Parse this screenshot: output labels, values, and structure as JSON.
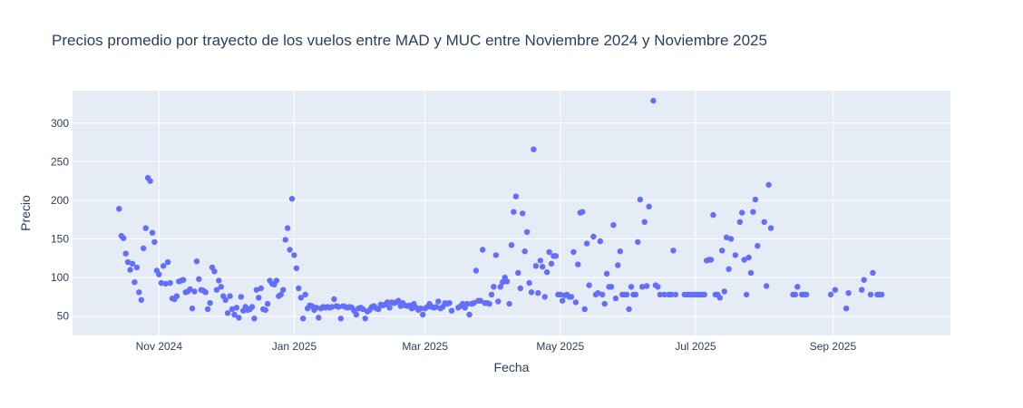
{
  "chart_data": {
    "type": "scatter",
    "title": "Precios promedio por trayecto de los vuelos entre MAD y MUC entre Noviembre 2024 y Noviembre 2025",
    "xlabel": "Fecha",
    "ylabel": "Precio",
    "xlim": [
      "2024-09-23",
      "2025-10-24"
    ],
    "ylim": [
      25,
      342
    ],
    "xticks": [
      {
        "date": "2024-11-01",
        "label": "Nov 2024"
      },
      {
        "date": "2025-01-01",
        "label": "Jan 2025"
      },
      {
        "date": "2025-03-01",
        "label": "Mar 2025"
      },
      {
        "date": "2025-05-01",
        "label": "May 2025"
      },
      {
        "date": "2025-07-01",
        "label": "Jul 2025"
      },
      {
        "date": "2025-09-01",
        "label": "Sep 2025"
      }
    ],
    "yticks": [
      50,
      100,
      150,
      200,
      250,
      300
    ],
    "grid": true,
    "plot_bgcolor": "#E5ECF6",
    "marker_color": "#636EFA",
    "points": [
      [
        "2024-10-14",
        189
      ],
      [
        "2024-10-15",
        154
      ],
      [
        "2024-10-16",
        151
      ],
      [
        "2024-10-17",
        131
      ],
      [
        "2024-10-18",
        120
      ],
      [
        "2024-10-19",
        110
      ],
      [
        "2024-10-20",
        118
      ],
      [
        "2024-10-21",
        94
      ],
      [
        "2024-10-22",
        113
      ],
      [
        "2024-10-23",
        81
      ],
      [
        "2024-10-24",
        71
      ],
      [
        "2024-10-25",
        138
      ],
      [
        "2024-10-26",
        164
      ],
      [
        "2024-10-27",
        229
      ],
      [
        "2024-10-28",
        225
      ],
      [
        "2024-10-29",
        158
      ],
      [
        "2024-10-30",
        146
      ],
      [
        "2024-10-31",
        109
      ],
      [
        "2024-11-01",
        104
      ],
      [
        "2024-11-02",
        93
      ],
      [
        "2024-11-03",
        115
      ],
      [
        "2024-11-04",
        92
      ],
      [
        "2024-11-05",
        120
      ],
      [
        "2024-11-06",
        93
      ],
      [
        "2024-11-07",
        73
      ],
      [
        "2024-11-08",
        72
      ],
      [
        "2024-11-09",
        76
      ],
      [
        "2024-11-10",
        95
      ],
      [
        "2024-11-11",
        96
      ],
      [
        "2024-11-12",
        97
      ],
      [
        "2024-11-13",
        81
      ],
      [
        "2024-11-14",
        82
      ],
      [
        "2024-11-15",
        85
      ],
      [
        "2024-11-16",
        60
      ],
      [
        "2024-11-17",
        82
      ],
      [
        "2024-11-18",
        121
      ],
      [
        "2024-11-19",
        98
      ],
      [
        "2024-11-20",
        84
      ],
      [
        "2024-11-21",
        83
      ],
      [
        "2024-11-22",
        81
      ],
      [
        "2024-11-23",
        59
      ],
      [
        "2024-11-24",
        67
      ],
      [
        "2024-11-25",
        113
      ],
      [
        "2024-11-26",
        108
      ],
      [
        "2024-11-27",
        84
      ],
      [
        "2024-11-28",
        96
      ],
      [
        "2024-11-29",
        88
      ],
      [
        "2024-11-30",
        76
      ],
      [
        "2024-12-01",
        71
      ],
      [
        "2024-12-02",
        54
      ],
      [
        "2024-12-03",
        76
      ],
      [
        "2024-12-04",
        59
      ],
      [
        "2024-12-05",
        52
      ],
      [
        "2024-12-06",
        61
      ],
      [
        "2024-12-07",
        48
      ],
      [
        "2024-12-08",
        75
      ],
      [
        "2024-12-09",
        57
      ],
      [
        "2024-12-10",
        62
      ],
      [
        "2024-12-11",
        58
      ],
      [
        "2024-12-12",
        59
      ],
      [
        "2024-12-13",
        62
      ],
      [
        "2024-12-14",
        47
      ],
      [
        "2024-12-15",
        84
      ],
      [
        "2024-12-16",
        74
      ],
      [
        "2024-12-17",
        86
      ],
      [
        "2024-12-18",
        59
      ],
      [
        "2024-12-19",
        58
      ],
      [
        "2024-12-20",
        66
      ],
      [
        "2024-12-21",
        96
      ],
      [
        "2024-12-22",
        92
      ],
      [
        "2024-12-23",
        91
      ],
      [
        "2024-12-24",
        96
      ],
      [
        "2024-12-25",
        76
      ],
      [
        "2024-12-26",
        78
      ],
      [
        "2024-12-27",
        84
      ],
      [
        "2024-12-28",
        149
      ],
      [
        "2024-12-29",
        164
      ],
      [
        "2024-12-30",
        136
      ],
      [
        "2024-12-31",
        202
      ],
      [
        "2025-01-01",
        129
      ],
      [
        "2025-01-02",
        112
      ],
      [
        "2025-01-03",
        86
      ],
      [
        "2025-01-04",
        74
      ],
      [
        "2025-01-05",
        47
      ],
      [
        "2025-01-06",
        78
      ],
      [
        "2025-01-07",
        60
      ],
      [
        "2025-01-08",
        64
      ],
      [
        "2025-01-09",
        63
      ],
      [
        "2025-01-10",
        58
      ],
      [
        "2025-01-11",
        61
      ],
      [
        "2025-01-12",
        48
      ],
      [
        "2025-01-13",
        60
      ],
      [
        "2025-01-14",
        62
      ],
      [
        "2025-01-15",
        61
      ],
      [
        "2025-01-16",
        62
      ],
      [
        "2025-01-17",
        61
      ],
      [
        "2025-01-18",
        62
      ],
      [
        "2025-01-19",
        72
      ],
      [
        "2025-01-20",
        63
      ],
      [
        "2025-01-21",
        62
      ],
      [
        "2025-01-22",
        47
      ],
      [
        "2025-01-23",
        63
      ],
      [
        "2025-01-24",
        62
      ],
      [
        "2025-01-25",
        61
      ],
      [
        "2025-01-26",
        62
      ],
      [
        "2025-01-27",
        61
      ],
      [
        "2025-01-28",
        57
      ],
      [
        "2025-01-29",
        52
      ],
      [
        "2025-01-30",
        60
      ],
      [
        "2025-01-31",
        61
      ],
      [
        "2025-02-01",
        59
      ],
      [
        "2025-02-02",
        47
      ],
      [
        "2025-02-03",
        56
      ],
      [
        "2025-02-04",
        58
      ],
      [
        "2025-02-05",
        62
      ],
      [
        "2025-02-06",
        63
      ],
      [
        "2025-02-07",
        60
      ],
      [
        "2025-02-08",
        59
      ],
      [
        "2025-02-09",
        65
      ],
      [
        "2025-02-10",
        64
      ],
      [
        "2025-02-11",
        65
      ],
      [
        "2025-02-12",
        68
      ],
      [
        "2025-02-13",
        61
      ],
      [
        "2025-02-14",
        68
      ],
      [
        "2025-02-15",
        67
      ],
      [
        "2025-02-16",
        68
      ],
      [
        "2025-02-17",
        70
      ],
      [
        "2025-02-18",
        63
      ],
      [
        "2025-02-19",
        67
      ],
      [
        "2025-02-20",
        64
      ],
      [
        "2025-02-21",
        63
      ],
      [
        "2025-02-22",
        64
      ],
      [
        "2025-02-23",
        60
      ],
      [
        "2025-02-24",
        66
      ],
      [
        "2025-02-25",
        61
      ],
      [
        "2025-02-26",
        58
      ],
      [
        "2025-02-27",
        60
      ],
      [
        "2025-02-28",
        52
      ],
      [
        "2025-03-01",
        60
      ],
      [
        "2025-03-02",
        62
      ],
      [
        "2025-03-03",
        66
      ],
      [
        "2025-03-04",
        62
      ],
      [
        "2025-03-05",
        61
      ],
      [
        "2025-03-06",
        62
      ],
      [
        "2025-03-07",
        69
      ],
      [
        "2025-03-08",
        60
      ],
      [
        "2025-03-09",
        62
      ],
      [
        "2025-03-10",
        67
      ],
      [
        "2025-03-11",
        66
      ],
      [
        "2025-03-12",
        67
      ],
      [
        "2025-03-13",
        57
      ],
      [
        "2025-03-16",
        61
      ],
      [
        "2025-03-17",
        63
      ],
      [
        "2025-03-18",
        66
      ],
      [
        "2025-03-19",
        61
      ],
      [
        "2025-03-20",
        66
      ],
      [
        "2025-03-21",
        52
      ],
      [
        "2025-03-22",
        66
      ],
      [
        "2025-03-23",
        67
      ],
      [
        "2025-03-24",
        109
      ],
      [
        "2025-03-25",
        70
      ],
      [
        "2025-03-26",
        70
      ],
      [
        "2025-03-27",
        136
      ],
      [
        "2025-03-28",
        67
      ],
      [
        "2025-03-29",
        67
      ],
      [
        "2025-03-30",
        66
      ],
      [
        "2025-03-31",
        78
      ],
      [
        "2025-04-01",
        88
      ],
      [
        "2025-04-02",
        129
      ],
      [
        "2025-04-03",
        69
      ],
      [
        "2025-04-04",
        88
      ],
      [
        "2025-04-05",
        94
      ],
      [
        "2025-04-06",
        100
      ],
      [
        "2025-04-07",
        95
      ],
      [
        "2025-04-08",
        66
      ],
      [
        "2025-04-09",
        142
      ],
      [
        "2025-04-10",
        185
      ],
      [
        "2025-04-11",
        205
      ],
      [
        "2025-04-12",
        106
      ],
      [
        "2025-04-13",
        86
      ],
      [
        "2025-04-14",
        183
      ],
      [
        "2025-04-15",
        134
      ],
      [
        "2025-04-16",
        159
      ],
      [
        "2025-04-17",
        93
      ],
      [
        "2025-04-18",
        81
      ],
      [
        "2025-04-19",
        266
      ],
      [
        "2025-04-20",
        115
      ],
      [
        "2025-04-21",
        80
      ],
      [
        "2025-04-22",
        122
      ],
      [
        "2025-04-23",
        114
      ],
      [
        "2025-04-24",
        75
      ],
      [
        "2025-04-25",
        107
      ],
      [
        "2025-04-26",
        133
      ],
      [
        "2025-04-27",
        118
      ],
      [
        "2025-04-28",
        128
      ],
      [
        "2025-04-29",
        128
      ],
      [
        "2025-04-30",
        78
      ],
      [
        "2025-05-01",
        78
      ],
      [
        "2025-05-02",
        70
      ],
      [
        "2025-05-03",
        77
      ],
      [
        "2025-05-04",
        78
      ],
      [
        "2025-05-05",
        75
      ],
      [
        "2025-05-06",
        75
      ],
      [
        "2025-05-07",
        133
      ],
      [
        "2025-05-08",
        68
      ],
      [
        "2025-05-09",
        117
      ],
      [
        "2025-05-10",
        184
      ],
      [
        "2025-05-11",
        185
      ],
      [
        "2025-05-12",
        59
      ],
      [
        "2025-05-13",
        144
      ],
      [
        "2025-05-14",
        90
      ],
      [
        "2025-05-16",
        153
      ],
      [
        "2025-05-17",
        78
      ],
      [
        "2025-05-18",
        80
      ],
      [
        "2025-05-19",
        147
      ],
      [
        "2025-05-20",
        78
      ],
      [
        "2025-05-21",
        66
      ],
      [
        "2025-05-22",
        105
      ],
      [
        "2025-05-23",
        88
      ],
      [
        "2025-05-24",
        88
      ],
      [
        "2025-05-25",
        168
      ],
      [
        "2025-05-26",
        73
      ],
      [
        "2025-05-27",
        116
      ],
      [
        "2025-05-28",
        134
      ],
      [
        "2025-05-29",
        78
      ],
      [
        "2025-05-30",
        78
      ],
      [
        "2025-05-31",
        78
      ],
      [
        "2025-06-01",
        59
      ],
      [
        "2025-06-02",
        88
      ],
      [
        "2025-06-03",
        78
      ],
      [
        "2025-06-04",
        78
      ],
      [
        "2025-06-05",
        146
      ],
      [
        "2025-06-06",
        201
      ],
      [
        "2025-06-07",
        88
      ],
      [
        "2025-06-08",
        172
      ],
      [
        "2025-06-09",
        89
      ],
      [
        "2025-06-10",
        192
      ],
      [
        "2025-06-12",
        329
      ],
      [
        "2025-06-13",
        90
      ],
      [
        "2025-06-14",
        88
      ],
      [
        "2025-06-15",
        78
      ],
      [
        "2025-06-17",
        78
      ],
      [
        "2025-06-19",
        78
      ],
      [
        "2025-06-20",
        78
      ],
      [
        "2025-06-21",
        135
      ],
      [
        "2025-06-22",
        78
      ],
      [
        "2025-06-26",
        78
      ],
      [
        "2025-06-27",
        78
      ],
      [
        "2025-06-28",
        78
      ],
      [
        "2025-06-29",
        78
      ],
      [
        "2025-06-30",
        78
      ],
      [
        "2025-07-01",
        78
      ],
      [
        "2025-07-02",
        78
      ],
      [
        "2025-07-03",
        78
      ],
      [
        "2025-07-04",
        78
      ],
      [
        "2025-07-05",
        78
      ],
      [
        "2025-07-06",
        122
      ],
      [
        "2025-07-07",
        123
      ],
      [
        "2025-07-08",
        123
      ],
      [
        "2025-07-09",
        181
      ],
      [
        "2025-07-10",
        78
      ],
      [
        "2025-07-11",
        78
      ],
      [
        "2025-07-12",
        74
      ],
      [
        "2025-07-13",
        135
      ],
      [
        "2025-07-14",
        82
      ],
      [
        "2025-07-15",
        152
      ],
      [
        "2025-07-16",
        111
      ],
      [
        "2025-07-17",
        150
      ],
      [
        "2025-07-19",
        129
      ],
      [
        "2025-07-21",
        172
      ],
      [
        "2025-07-22",
        184
      ],
      [
        "2025-07-23",
        123
      ],
      [
        "2025-07-24",
        78
      ],
      [
        "2025-07-25",
        126
      ],
      [
        "2025-07-26",
        106
      ],
      [
        "2025-07-27",
        185
      ],
      [
        "2025-07-28",
        201
      ],
      [
        "2025-07-29",
        141
      ],
      [
        "2025-08-01",
        172
      ],
      [
        "2025-08-02",
        89
      ],
      [
        "2025-08-03",
        220
      ],
      [
        "2025-08-04",
        164
      ],
      [
        "2025-08-14",
        78
      ],
      [
        "2025-08-15",
        78
      ],
      [
        "2025-08-16",
        88
      ],
      [
        "2025-08-18",
        78
      ],
      [
        "2025-08-19",
        78
      ],
      [
        "2025-08-20",
        78
      ],
      [
        "2025-08-31",
        78
      ],
      [
        "2025-09-02",
        84
      ],
      [
        "2025-09-07",
        60
      ],
      [
        "2025-09-08",
        80
      ],
      [
        "2025-09-14",
        84
      ],
      [
        "2025-09-15",
        97
      ],
      [
        "2025-09-18",
        78
      ],
      [
        "2025-09-19",
        106
      ],
      [
        "2025-09-21",
        78
      ],
      [
        "2025-09-22",
        78
      ],
      [
        "2025-09-23",
        78
      ]
    ]
  }
}
